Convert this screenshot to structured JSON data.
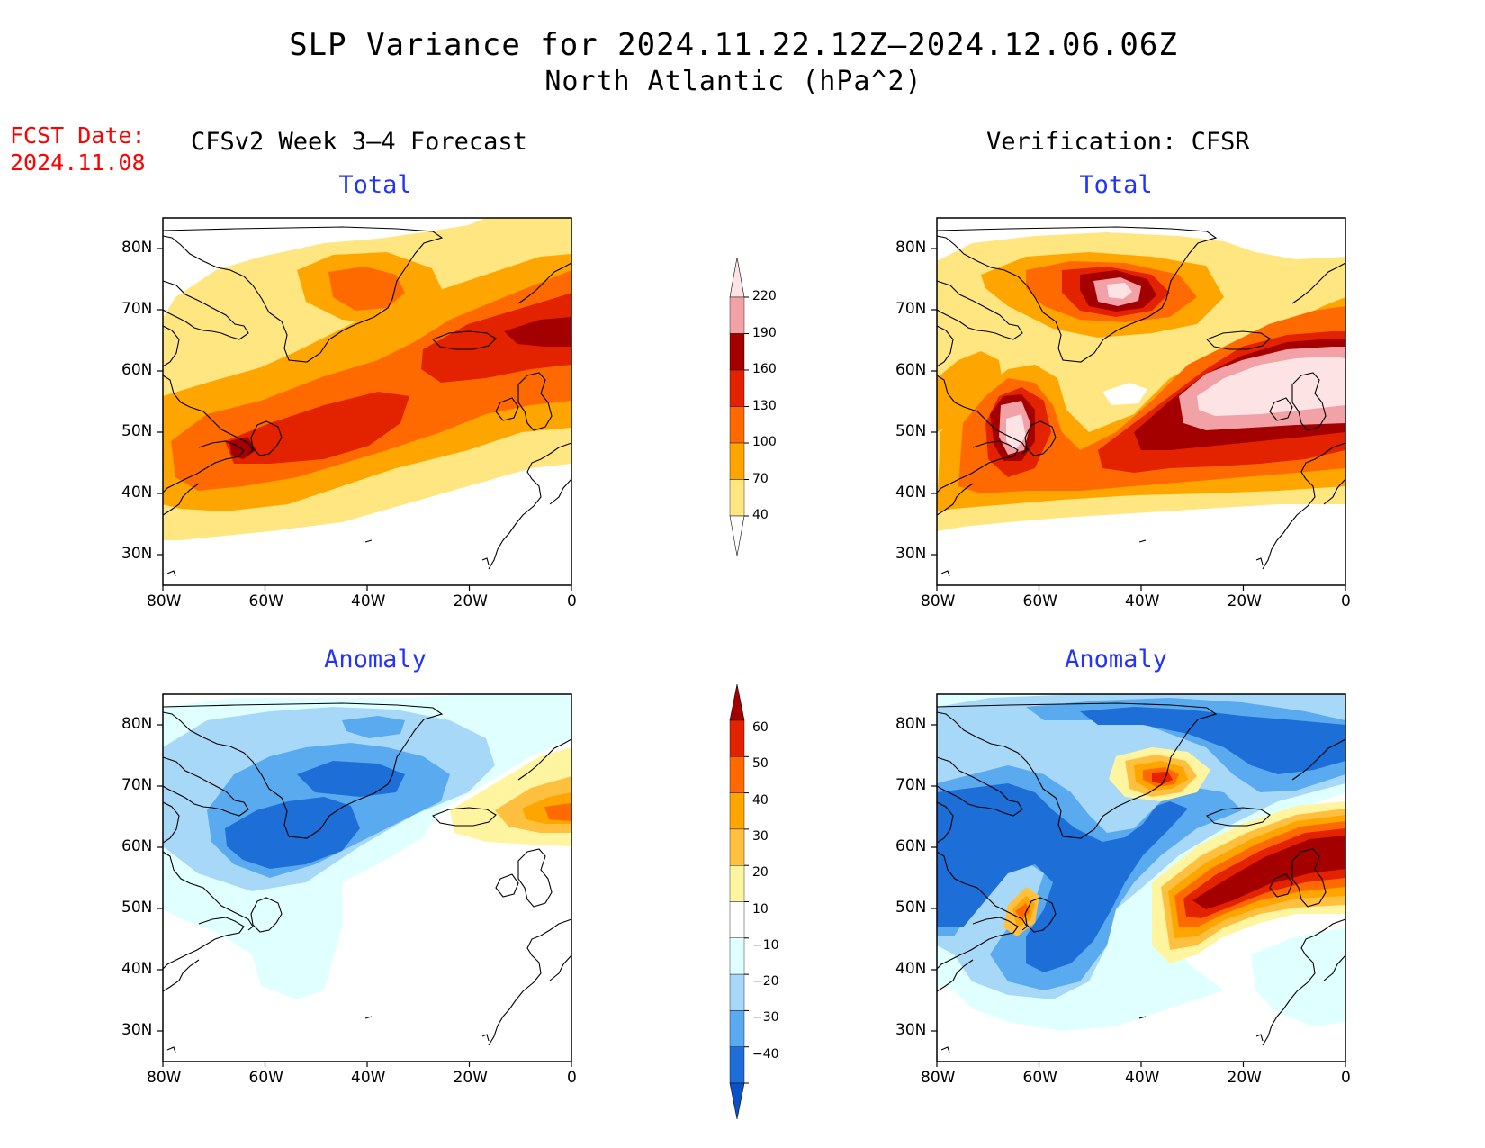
{
  "title": {
    "line1": "SLP Variance for 2024.11.22.12Z–2024.12.06.06Z",
    "line2": "North Atlantic (hPa^2)"
  },
  "forecast_date": {
    "label": "FCST Date:",
    "value": "2024.11.08"
  },
  "columns": {
    "left": "CFSv2 Week 3–4 Forecast",
    "right": "Verification: CFSR"
  },
  "rows": {
    "top": "Total",
    "bottom": "Anomaly"
  },
  "axes": {
    "lat_labels": [
      "80N",
      "70N",
      "60N",
      "50N",
      "40N",
      "30N"
    ],
    "lon_labels": [
      "80W",
      "60W",
      "40W",
      "20W",
      "0"
    ],
    "lat_range": [
      25,
      85
    ],
    "lon_range": [
      -80,
      0
    ]
  },
  "colorbars": {
    "total": {
      "levels": [
        "40",
        "70",
        "100",
        "130",
        "160",
        "190",
        "220"
      ],
      "colors": [
        "#ffe680",
        "#ffa500",
        "#ff6a00",
        "#e32200",
        "#a50000",
        "#f2a2a6",
        "#fde3e3"
      ]
    },
    "anomaly": {
      "levels": [
        "60",
        "50",
        "40",
        "30",
        "20",
        "10",
        "−10",
        "−20",
        "−30",
        "−40"
      ],
      "colors": [
        "#a50000",
        "#e32200",
        "#ff6a00",
        "#ffa500",
        "#ffc040",
        "#fff5a0",
        "#ffffff",
        "#e0ffff",
        "#a8d8f8",
        "#5aaaf0",
        "#1e6ed8",
        "#0a50c8"
      ]
    }
  },
  "palette": {
    "t1": "#ffe680",
    "t2": "#ffa500",
    "t3": "#ff6a00",
    "t4": "#e32200",
    "t5": "#a50000",
    "t6": "#f2a2a6",
    "t7": "#fde3e3",
    "n1": "#e0ffff",
    "n2": "#a8d8f8",
    "n3": "#5aaaf0",
    "n4": "#1e6ed8",
    "p1": "#fff5a0",
    "p2": "#ffc040",
    "p3": "#ffa500",
    "p4": "#ff6a00",
    "p5": "#e32200",
    "p6": "#a50000"
  }
}
